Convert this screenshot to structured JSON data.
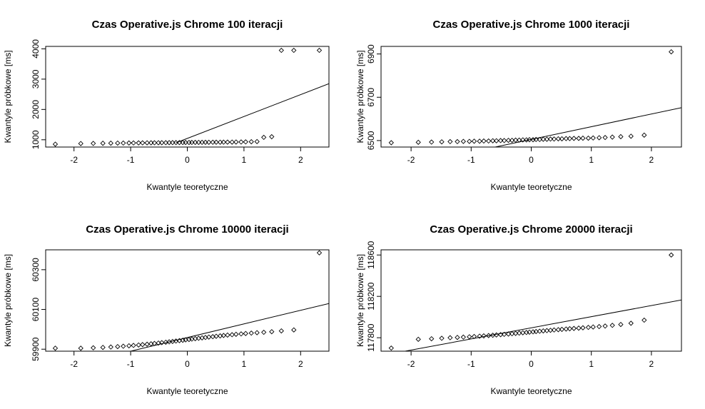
{
  "chart_data": [
    {
      "type": "scatter",
      "title": "Czas Operative.js Chrome  100 iteracji",
      "xlabel": "Kwantyle teoretyczne",
      "ylabel": "Kwantyle próbkowe [ms]",
      "xlim": [
        -2.5,
        2.5
      ],
      "ylim": [
        760,
        4080
      ],
      "x_ticks": [
        "-2",
        "-1",
        "0",
        "1",
        "2"
      ],
      "y_ticks": [
        "1000",
        "2000",
        "3000",
        "4000"
      ],
      "x": [
        -2.33,
        -1.88,
        -1.66,
        -1.49,
        -1.35,
        -1.23,
        -1.13,
        -1.03,
        -0.95,
        -0.86,
        -0.79,
        -0.71,
        -0.64,
        -0.58,
        -0.51,
        -0.45,
        -0.38,
        -0.32,
        -0.26,
        -0.2,
        -0.14,
        -0.08,
        -0.03,
        0.03,
        0.08,
        0.14,
        0.2,
        0.26,
        0.32,
        0.38,
        0.45,
        0.51,
        0.58,
        0.64,
        0.71,
        0.79,
        0.86,
        0.95,
        1.03,
        1.13,
        1.23,
        1.35,
        1.49,
        1.66,
        1.88,
        2.33
      ],
      "y": [
        855,
        875,
        880,
        885,
        888,
        890,
        892,
        894,
        895,
        897,
        898,
        899,
        900,
        901,
        902,
        903,
        904,
        905,
        906,
        907,
        908,
        909,
        910,
        911,
        912,
        913,
        914,
        915,
        916,
        917,
        918,
        919,
        920,
        921,
        922,
        923,
        925,
        927,
        930,
        935,
        940,
        1080,
        1100,
        3950,
        3950,
        3950
      ],
      "reference_line": [
        [
          -0.2,
          900
        ],
        [
          2.5,
          2850
        ]
      ]
    },
    {
      "type": "scatter",
      "title": "Czas Operative.js Chrome  1000 iteracji",
      "xlabel": "Kwantyle teoretyczne",
      "ylabel": "Kwantyle próbkowe [ms]",
      "xlim": [
        -2.5,
        2.5
      ],
      "ylim": [
        6470,
        6935
      ],
      "x_ticks": [
        "-2",
        "-1",
        "0",
        "1",
        "2"
      ],
      "y_ticks": [
        "6500",
        "6700",
        "6900"
      ],
      "x": [
        -2.33,
        -1.88,
        -1.66,
        -1.49,
        -1.35,
        -1.23,
        -1.13,
        -1.03,
        -0.95,
        -0.86,
        -0.79,
        -0.71,
        -0.64,
        -0.58,
        -0.51,
        -0.45,
        -0.38,
        -0.32,
        -0.26,
        -0.2,
        -0.14,
        -0.08,
        -0.03,
        0.03,
        0.08,
        0.14,
        0.2,
        0.26,
        0.32,
        0.38,
        0.45,
        0.51,
        0.58,
        0.64,
        0.71,
        0.79,
        0.86,
        0.95,
        1.03,
        1.13,
        1.23,
        1.35,
        1.49,
        1.66,
        1.88,
        2.33
      ],
      "y": [
        6490,
        6492,
        6493,
        6494,
        6495,
        6495,
        6496,
        6496,
        6497,
        6497,
        6498,
        6498,
        6499,
        6499,
        6500,
        6500,
        6501,
        6501,
        6502,
        6502,
        6503,
        6503,
        6504,
        6504,
        6505,
        6505,
        6506,
        6506,
        6507,
        6507,
        6508,
        6508,
        6509,
        6509,
        6510,
        6510,
        6511,
        6511,
        6512,
        6513,
        6514,
        6516,
        6518,
        6520,
        6525,
        6910
      ],
      "reference_line": [
        [
          -0.6,
          6470
        ],
        [
          2.5,
          6652
        ]
      ]
    },
    {
      "type": "scatter",
      "title": "Czas Operative.js Chrome  10000 iteracji",
      "xlabel": "Kwantyle teoretyczne",
      "ylabel": "Kwantyle próbkowe [ms]",
      "xlim": [
        -2.5,
        2.5
      ],
      "ylim": [
        59890,
        60400
      ],
      "x_ticks": [
        "-2",
        "-1",
        "0",
        "1",
        "2"
      ],
      "y_ticks": [
        "59900",
        "60100",
        "60300"
      ],
      "x": [
        -2.33,
        -1.88,
        -1.66,
        -1.49,
        -1.35,
        -1.23,
        -1.13,
        -1.03,
        -0.95,
        -0.86,
        -0.79,
        -0.71,
        -0.64,
        -0.58,
        -0.51,
        -0.45,
        -0.38,
        -0.32,
        -0.26,
        -0.2,
        -0.14,
        -0.08,
        -0.03,
        0.03,
        0.08,
        0.14,
        0.2,
        0.26,
        0.32,
        0.38,
        0.45,
        0.51,
        0.58,
        0.64,
        0.71,
        0.79,
        0.86,
        0.95,
        1.03,
        1.13,
        1.23,
        1.35,
        1.49,
        1.66,
        1.88,
        2.33
      ],
      "y": [
        59905,
        59905,
        59907,
        59909,
        59911,
        59913,
        59915,
        59917,
        59919,
        59921,
        59923,
        59925,
        59927,
        59929,
        59931,
        59933,
        59935,
        59937,
        59939,
        59941,
        59943,
        59945,
        59947,
        59949,
        59951,
        59953,
        59955,
        59957,
        59959,
        59961,
        59963,
        59965,
        59967,
        59969,
        59971,
        59973,
        59975,
        59977,
        59979,
        59981,
        59983,
        59985,
        59988,
        59992,
        59997,
        60385
      ],
      "reference_line": [
        [
          -1.0,
          59890
        ],
        [
          2.5,
          60130
        ]
      ]
    },
    {
      "type": "scatter",
      "title": "Czas Operative.js Chrome  20000 iteracji",
      "xlabel": "Kwantyle teoretyczne",
      "ylabel": "Kwantyle próbkowe [ms]",
      "xlim": [
        -2.5,
        2.5
      ],
      "ylim": [
        117670,
        118650
      ],
      "x_ticks": [
        "-2",
        "-1",
        "0",
        "1",
        "2"
      ],
      "y_ticks": [
        "117800",
        "118200",
        "118600"
      ],
      "x": [
        -2.33,
        -1.88,
        -1.66,
        -1.49,
        -1.35,
        -1.23,
        -1.13,
        -1.03,
        -0.95,
        -0.86,
        -0.79,
        -0.71,
        -0.64,
        -0.58,
        -0.51,
        -0.45,
        -0.38,
        -0.32,
        -0.26,
        -0.2,
        -0.14,
        -0.08,
        -0.03,
        0.03,
        0.08,
        0.14,
        0.2,
        0.26,
        0.32,
        0.38,
        0.45,
        0.51,
        0.58,
        0.64,
        0.71,
        0.79,
        0.86,
        0.95,
        1.03,
        1.13,
        1.23,
        1.35,
        1.49,
        1.66,
        1.88,
        2.33
      ],
      "y": [
        117700,
        117785,
        117790,
        117795,
        117800,
        117803,
        117806,
        117809,
        117812,
        117815,
        117818,
        117821,
        117824,
        117827,
        117830,
        117833,
        117836,
        117839,
        117842,
        117845,
        117848,
        117851,
        117854,
        117857,
        117860,
        117863,
        117866,
        117869,
        117872,
        117875,
        117878,
        117881,
        117884,
        117887,
        117890,
        117893,
        117896,
        117900,
        117904,
        117908,
        117913,
        117920,
        117928,
        117940,
        117970,
        118600
      ],
      "reference_line": [
        [
          -2.1,
          117670
        ],
        [
          2.5,
          118165
        ]
      ]
    }
  ]
}
